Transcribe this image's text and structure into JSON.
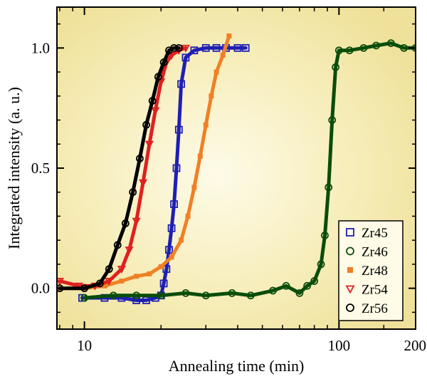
{
  "chart_data": {
    "type": "scatter",
    "title": "",
    "xlabel": "Annealing time (min)",
    "ylabel": "Integrated intensity (a. u.)",
    "xscale": "log",
    "xlim": [
      7.8,
      200
    ],
    "ylim": [
      -0.17,
      1.17
    ],
    "grid": false,
    "legend_position": "bottom-right",
    "x_ticks": [
      {
        "value": 10,
        "label": "10"
      },
      {
        "value": 100,
        "label": "100"
      },
      {
        "value": 200,
        "label": "200"
      }
    ],
    "y_ticks": [
      {
        "value": 0.0,
        "label": "0.0"
      },
      {
        "value": 0.5,
        "label": "0.5"
      },
      {
        "value": 1.0,
        "label": "1.0"
      }
    ],
    "series": [
      {
        "name": "Zr45",
        "color": "#1f1fb4",
        "marker": "square-open",
        "x": [
          9.8,
          12.0,
          14.0,
          16.0,
          17.5,
          19.0,
          20.0,
          20.5,
          21.0,
          21.5,
          22.0,
          22.5,
          23.0,
          23.5,
          24.0,
          25.0,
          27.0,
          30.0,
          33.0,
          36.0,
          40.0,
          43.0
        ],
        "y": [
          -0.04,
          -0.04,
          -0.04,
          -0.05,
          -0.05,
          -0.04,
          -0.03,
          0.02,
          0.08,
          0.16,
          0.25,
          0.35,
          0.5,
          0.66,
          0.85,
          0.96,
          0.99,
          1.0,
          1.0,
          1.0,
          1.0,
          1.0
        ]
      },
      {
        "name": "Zr46",
        "color": "#0a4d0a",
        "marker": "circle-open",
        "x": [
          10.0,
          13.0,
          16.0,
          20.0,
          25.0,
          30.0,
          38.0,
          45.0,
          55.0,
          62.0,
          70.0,
          75.0,
          80.0,
          85.0,
          88.0,
          91.0,
          94.0,
          97.0,
          100.0,
          110.0,
          125.0,
          140.0,
          160.0,
          180.0,
          200.0
        ],
        "y": [
          -0.04,
          -0.03,
          -0.03,
          -0.03,
          -0.02,
          -0.03,
          -0.02,
          -0.03,
          -0.01,
          0.01,
          -0.02,
          0.01,
          0.03,
          0.1,
          0.22,
          0.42,
          0.7,
          0.92,
          0.99,
          0.99,
          1.0,
          1.01,
          1.02,
          1.0,
          1.0
        ]
      },
      {
        "name": "Zr48",
        "color": "#f08026",
        "marker": "square-filled",
        "x": [
          8.0,
          10.0,
          12.0,
          14.0,
          16.0,
          18.0,
          20.0,
          22.0,
          24.0,
          25.5,
          27.0,
          28.5,
          30.0,
          31.5,
          33.0,
          35.0,
          37.0
        ],
        "y": [
          0.0,
          0.0,
          0.01,
          0.03,
          0.05,
          0.06,
          0.09,
          0.13,
          0.2,
          0.3,
          0.42,
          0.55,
          0.68,
          0.8,
          0.9,
          0.97,
          1.05
        ]
      },
      {
        "name": "Zr54",
        "color": "#e02020",
        "marker": "triangle-down-open",
        "x": [
          8.0,
          9.5,
          11.0,
          12.5,
          14.0,
          15.0,
          16.0,
          17.0,
          18.0,
          19.0,
          20.0,
          21.0,
          22.0,
          23.5,
          25.0
        ],
        "y": [
          0.03,
          0.01,
          0.01,
          0.03,
          0.08,
          0.16,
          0.28,
          0.44,
          0.6,
          0.74,
          0.86,
          0.94,
          0.97,
          0.99,
          1.0
        ]
      },
      {
        "name": "Zr56",
        "color": "#000000",
        "marker": "circle-open",
        "x": [
          8.0,
          10.0,
          11.5,
          12.5,
          13.5,
          14.5,
          15.5,
          16.5,
          17.5,
          18.5,
          19.5,
          20.5,
          21.5,
          22.5,
          23.5
        ],
        "y": [
          0.0,
          0.0,
          0.02,
          0.08,
          0.18,
          0.27,
          0.4,
          0.54,
          0.68,
          0.78,
          0.88,
          0.94,
          0.99,
          1.0,
          1.0
        ]
      }
    ]
  }
}
